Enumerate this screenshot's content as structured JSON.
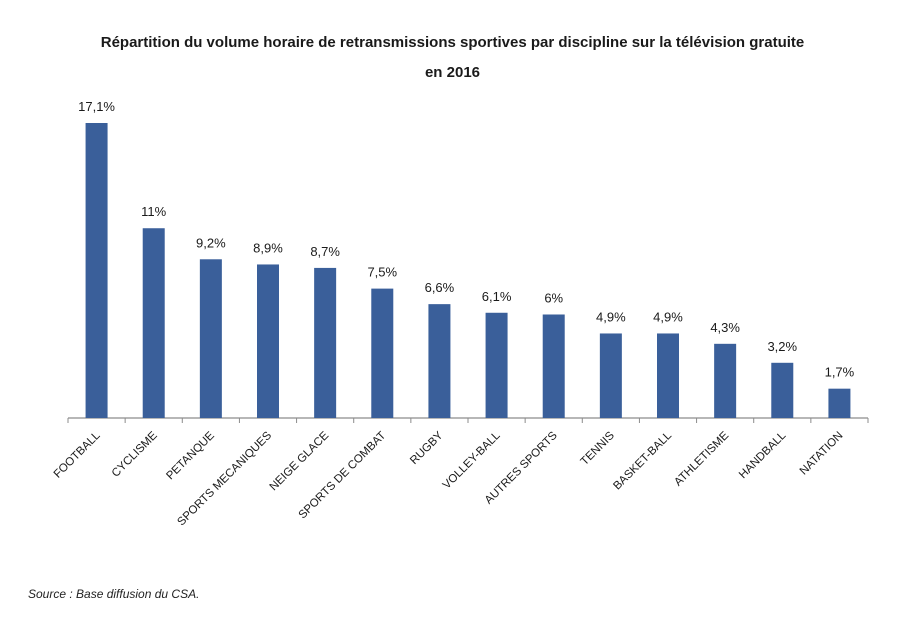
{
  "chart_data": {
    "type": "bar",
    "title_line1": "Répartition du volume horaire de retransmissions sportives par discipline sur la télévision gratuite",
    "title_line2": "en 2016",
    "xlabel": "",
    "ylabel": "",
    "ylim": [
      0,
      18
    ],
    "grid": false,
    "legend": "none",
    "bar_color": "#3a5f9a",
    "axis_color": "#8c8c8c",
    "categories": [
      "FOOTBALL",
      "CYCLISME",
      "PETANQUE",
      "SPORTS MECANIQUES",
      "NEIGE GLACE",
      "SPORTS DE COMBAT",
      "RUGBY",
      "VOLLEY-BALL",
      "AUTRES SPORTS",
      "TENNIS",
      "BASKET-BALL",
      "ATHLETISME",
      "HANDBALL",
      "NATATION"
    ],
    "values": [
      17.1,
      11,
      9.2,
      8.9,
      8.7,
      7.5,
      6.6,
      6.1,
      6,
      4.9,
      4.9,
      4.3,
      3.2,
      1.7
    ],
    "data_labels": [
      "17,1%",
      "11%",
      "9,2%",
      "8,9%",
      "8,7%",
      "7,5%",
      "6,6%",
      "6,1%",
      "6%",
      "4,9%",
      "4,9%",
      "4,3%",
      "3,2%",
      "1,7%"
    ]
  },
  "source": "Source : Base diffusion du CSA."
}
